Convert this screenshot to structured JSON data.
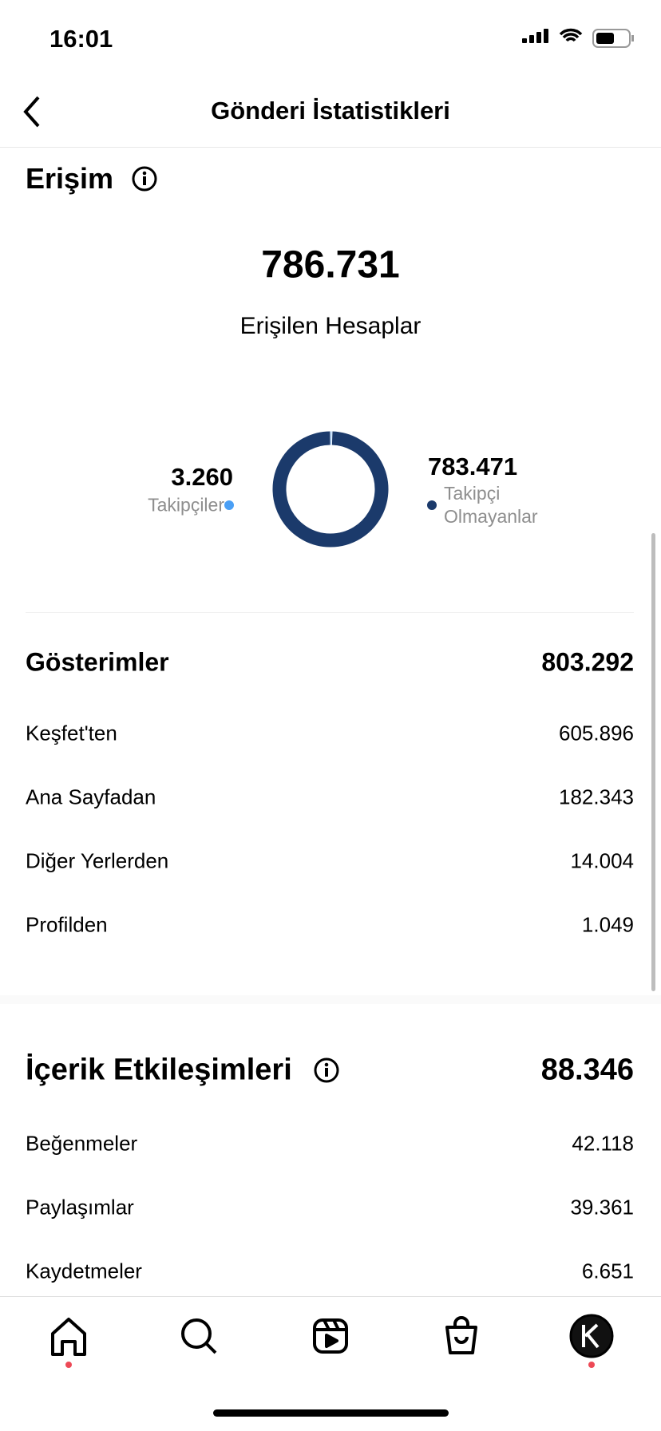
{
  "status_bar": {
    "time": "16:01"
  },
  "header": {
    "title": "Gönderi İstatistikleri"
  },
  "reach": {
    "title": "Erişim",
    "total": "786.731",
    "total_label": "Erişilen Hesaplar",
    "donut": {
      "values": [
        3260,
        783471
      ],
      "value_labels": [
        "3.260",
        "783.471"
      ],
      "labels": [
        "Takipçiler",
        "Takipçi Olmayanlar"
      ],
      "colors": [
        "#4a9ff5",
        "#1b3a6b"
      ]
    }
  },
  "impressions": {
    "title": "Gösterimler",
    "total": "803.292",
    "rows": [
      [
        "Keşfet'ten",
        "605.896"
      ],
      [
        "Ana Sayfadan",
        "182.343"
      ],
      [
        "Diğer Yerlerden",
        "14.004"
      ],
      [
        "Profilden",
        "1.049"
      ]
    ]
  },
  "interactions": {
    "title": "İçerik Etkileşimleri",
    "total": "88.346",
    "rows": [
      [
        "Beğenmeler",
        "42.118"
      ],
      [
        "Paylaşımlar",
        "39.361"
      ],
      [
        "Kaydetmeler",
        "6.651"
      ]
    ]
  }
}
